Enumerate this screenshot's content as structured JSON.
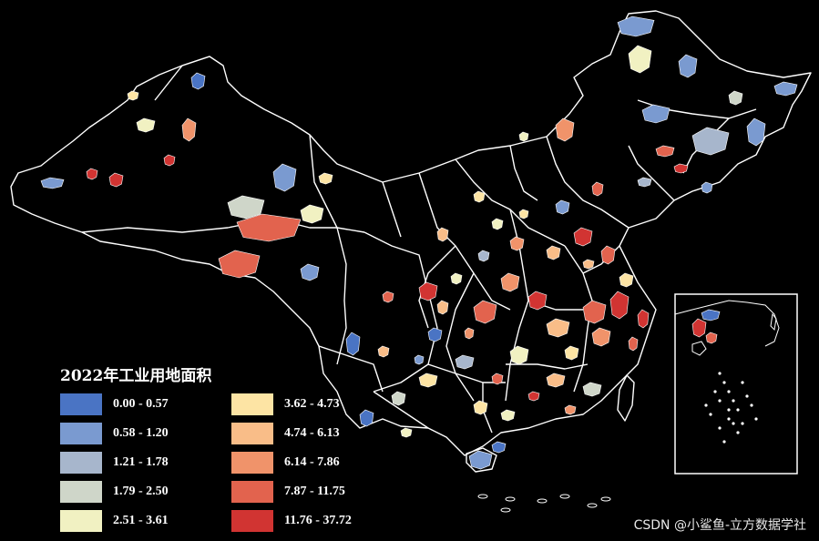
{
  "legend": {
    "title": "2022年工业用地面积",
    "classes": [
      {
        "label": "0.00 - 0.57",
        "color": "#4a74c4"
      },
      {
        "label": "0.58 - 1.20",
        "color": "#7a9ad0"
      },
      {
        "label": "1.21 - 1.78",
        "color": "#a7b6cc"
      },
      {
        "label": "1.79 - 2.50",
        "color": "#cfd6c9"
      },
      {
        "label": "2.51 - 3.61",
        "color": "#f1f1c2"
      },
      {
        "label": "3.62 - 4.73",
        "color": "#fde4a4"
      },
      {
        "label": "4.74 - 6.13",
        "color": "#f9bd88"
      },
      {
        "label": "6.14 - 7.86",
        "color": "#f0936a"
      },
      {
        "label": "7.87 - 11.75",
        "color": "#e2634e"
      },
      {
        "label": "11.76 - 37.72",
        "color": "#d13432"
      }
    ]
  },
  "watermark": "CSDN @小鲨鱼-立方数据学社",
  "colors": {
    "background": "#000000",
    "boundary": "#ffffff"
  }
}
